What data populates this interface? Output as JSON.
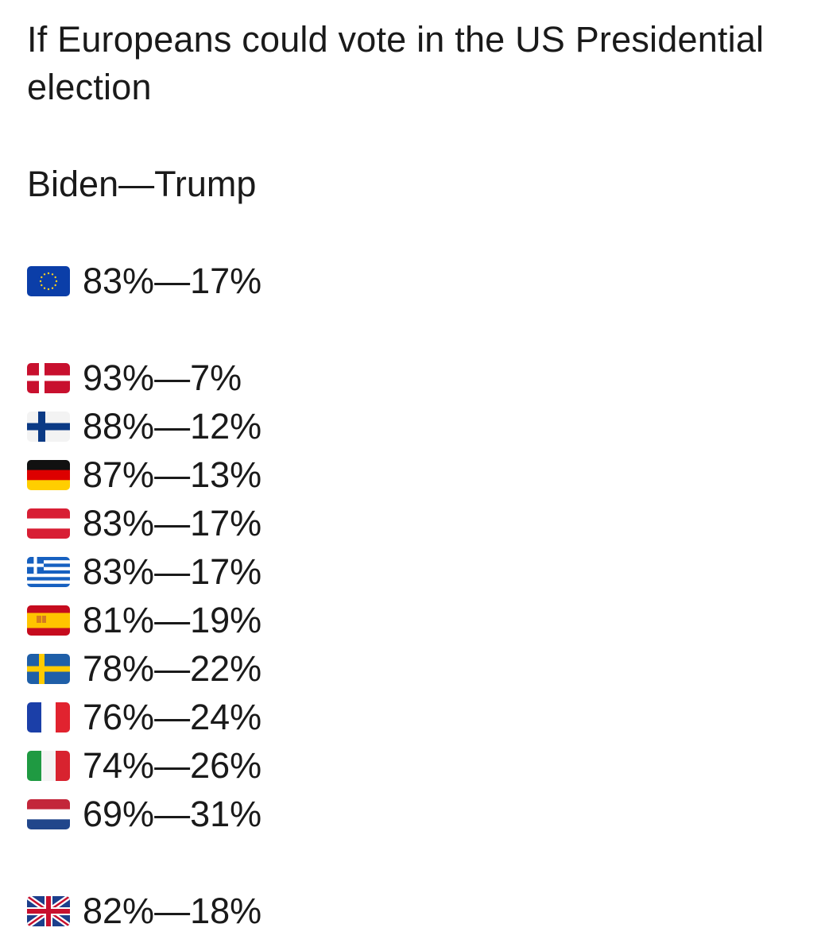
{
  "title": "If Europeans could vote in the US Presidential election",
  "subtitle": "Biden—Trump",
  "rows": {
    "eu": {
      "flag": "eu-flag-icon",
      "text": "83%—17%"
    },
    "dk": {
      "flag": "denmark-flag-icon",
      "text": "93%—7%"
    },
    "fi": {
      "flag": "finland-flag-icon",
      "text": "88%—12%"
    },
    "de": {
      "flag": "germany-flag-icon",
      "text": "87%—13%"
    },
    "at": {
      "flag": "austria-flag-icon",
      "text": "83%—17%"
    },
    "gr": {
      "flag": "greece-flag-icon",
      "text": "83%—17%"
    },
    "es": {
      "flag": "spain-flag-icon",
      "text": "81%—19%"
    },
    "se": {
      "flag": "sweden-flag-icon",
      "text": "78%—22%"
    },
    "fr": {
      "flag": "france-flag-icon",
      "text": "76%—24%"
    },
    "it": {
      "flag": "italy-flag-icon",
      "text": "74%—26%"
    },
    "nl": {
      "flag": "netherlands-flag-icon",
      "text": "69%—31%"
    },
    "uk": {
      "flag": "uk-flag-icon",
      "text": "82%—18%"
    }
  }
}
